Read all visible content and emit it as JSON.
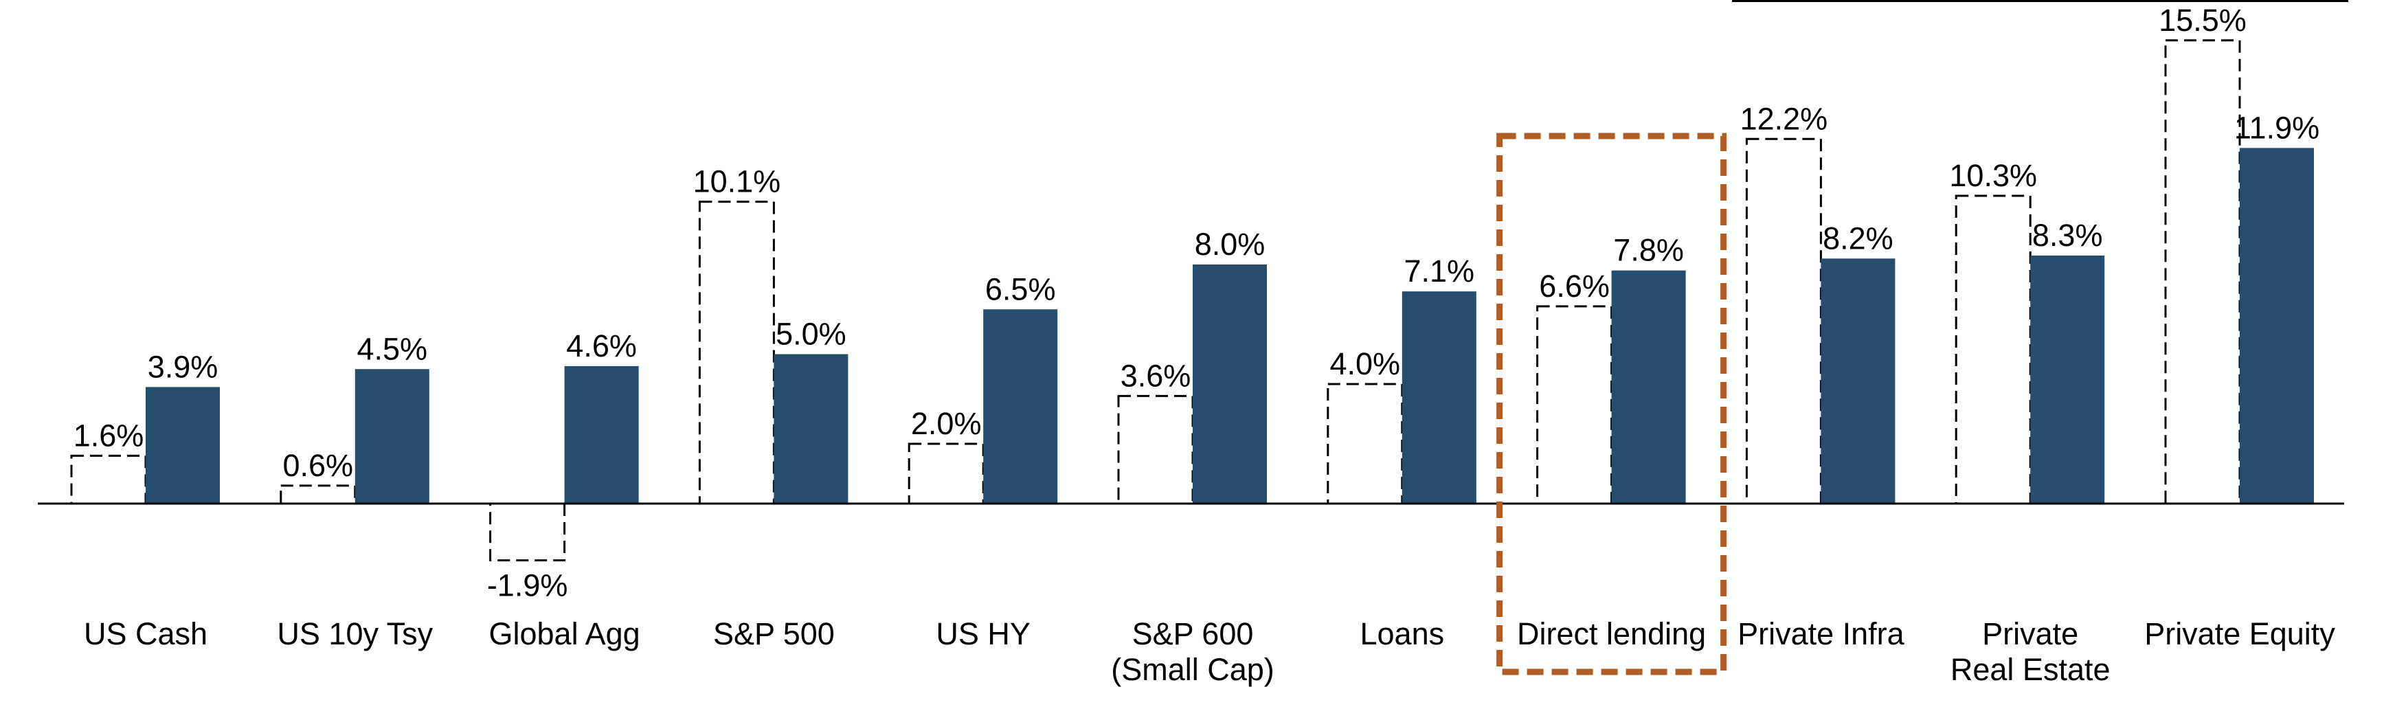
{
  "chart_data": {
    "type": "bar",
    "categories": [
      [
        "US Cash"
      ],
      [
        "US 10y Tsy"
      ],
      [
        "Global Agg"
      ],
      [
        "S&P 500"
      ],
      [
        "US HY"
      ],
      [
        "S&P 600",
        "(Small Cap)"
      ],
      [
        "Loans"
      ],
      [
        "Direct lending"
      ],
      [
        "Private Infra"
      ],
      [
        "Private",
        "Real Estate"
      ],
      [
        "Private Equity"
      ]
    ],
    "series": [
      {
        "style": "dashed-outline",
        "values": [
          1.6,
          0.6,
          -1.9,
          10.1,
          2.0,
          3.6,
          4.0,
          6.6,
          12.2,
          10.3,
          15.5
        ],
        "labels": [
          "1.6%",
          "0.6%",
          "-1.9%",
          "10.1%",
          "2.0%",
          "3.6%",
          "4.0%",
          "6.6%",
          "12.2%",
          "10.3%",
          "15.5%"
        ]
      },
      {
        "style": "solid",
        "values": [
          3.9,
          4.5,
          4.6,
          5.0,
          6.5,
          8.0,
          7.1,
          7.8,
          8.2,
          8.3,
          11.9
        ],
        "labels": [
          "3.9%",
          "4.5%",
          "4.6%",
          "5.0%",
          "6.5%",
          "8.0%",
          "7.1%",
          "7.8%",
          "8.2%",
          "8.3%",
          "11.9%"
        ]
      }
    ],
    "highlight_category_index": 7,
    "ylim": [
      -3.5,
      17.0
    ],
    "colors": {
      "solid_fill": "#264d6e",
      "outline_stroke": "#000000",
      "highlight_stroke": "#b05e26",
      "axis": "#000000"
    },
    "grid": false,
    "legend": "none"
  }
}
